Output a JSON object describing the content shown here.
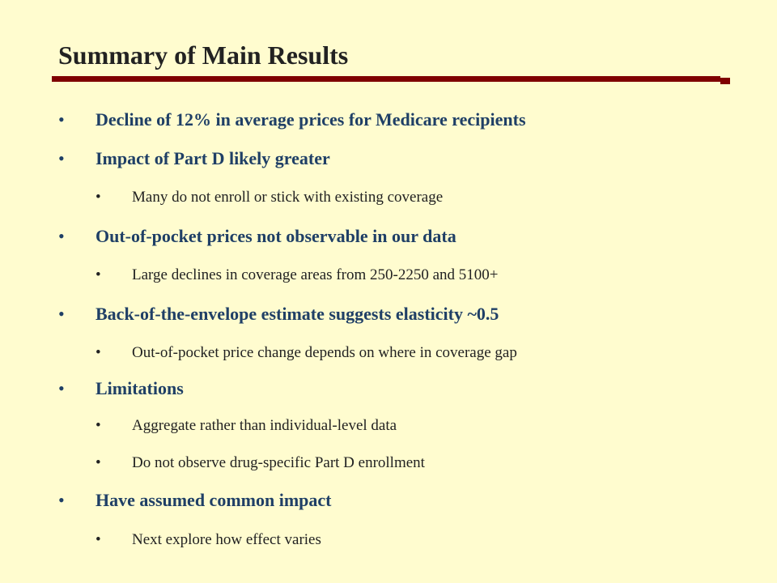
{
  "slide": {
    "title": "Summary of Main Results",
    "bullet_glyph": "•",
    "bullets": [
      {
        "level": 1,
        "text": "Decline of 12% in average prices for Medicare recipients"
      },
      {
        "level": 1,
        "text": "Impact of Part D likely greater"
      },
      {
        "level": 2,
        "text": "Many do not enroll or stick with existing coverage"
      },
      {
        "level": 1,
        "text": "Out-of-pocket prices not observable in our data"
      },
      {
        "level": 2,
        "text": "Large declines in coverage areas from 250-2250 and 5100+"
      },
      {
        "level": 1,
        "text": "Back-of-the-envelope estimate suggests elasticity ~0.5"
      },
      {
        "level": 2,
        "text": "Out-of-pocket price change depends on where in coverage gap"
      },
      {
        "level": 1,
        "text": "Limitations"
      },
      {
        "level": 2,
        "text": "Aggregate rather than individual-level data"
      },
      {
        "level": 2,
        "text": "Do not observe drug-specific Part D enrollment"
      },
      {
        "level": 1,
        "text": "Have assumed common impact"
      },
      {
        "level": 2,
        "text": "Next explore how effect varies"
      }
    ]
  },
  "colors": {
    "background": "#fffccf",
    "title_text": "#222222",
    "rule": "#7f0000",
    "level1_text": "#1f3f66",
    "level2_text": "#222222"
  }
}
